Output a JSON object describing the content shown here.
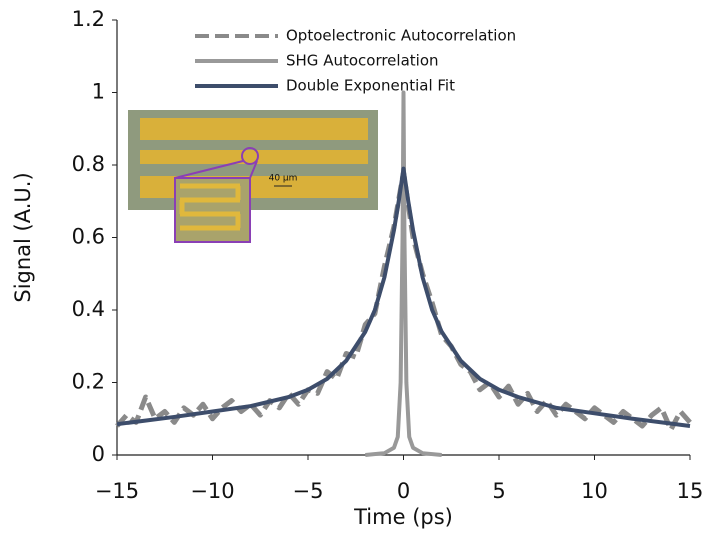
{
  "chart_data": {
    "type": "line",
    "xlabel": "Time (ps)",
    "ylabel": "Signal (A.U.)",
    "xlim": [
      -15,
      15
    ],
    "ylim": [
      0,
      1.2
    ],
    "xticks": [
      {
        "value": -15,
        "label": "−15"
      },
      {
        "value": -10,
        "label": "−10"
      },
      {
        "value": -5,
        "label": "−5"
      },
      0,
      5,
      10,
      15
    ],
    "yticks": [
      0,
      0.2,
      0.4,
      0.6,
      0.8,
      1,
      1.2
    ],
    "grid": false,
    "legend": "top",
    "annotations": [
      "40 μm"
    ],
    "series": [
      {
        "name": "Optoelectronic Autocorrelation",
        "color": "#8a8a8a",
        "dash": true,
        "x": [
          -15,
          -14.5,
          -14,
          -13.5,
          -13,
          -12.5,
          -12,
          -11.5,
          -11,
          -10.5,
          -10,
          -9.5,
          -9,
          -8.5,
          -8,
          -7.5,
          -7,
          -6.5,
          -6,
          -5.5,
          -5,
          -4.5,
          -4,
          -3.5,
          -3,
          -2.5,
          -2,
          -1.5,
          -1,
          -0.5,
          0,
          0.5,
          1,
          1.5,
          2,
          2.5,
          3,
          3.5,
          4,
          4.5,
          5,
          5.5,
          6,
          6.5,
          7,
          7.5,
          8,
          8.5,
          9,
          9.5,
          10,
          10.5,
          11,
          11.5,
          12,
          12.5,
          13,
          13.5,
          14,
          14.5,
          15
        ],
        "values": [
          0.08,
          0.11,
          0.09,
          0.16,
          0.1,
          0.12,
          0.09,
          0.13,
          0.11,
          0.14,
          0.1,
          0.13,
          0.15,
          0.12,
          0.14,
          0.11,
          0.15,
          0.13,
          0.17,
          0.14,
          0.18,
          0.17,
          0.23,
          0.21,
          0.28,
          0.27,
          0.36,
          0.39,
          0.52,
          0.63,
          0.78,
          0.6,
          0.5,
          0.42,
          0.33,
          0.3,
          0.25,
          0.23,
          0.18,
          0.2,
          0.16,
          0.19,
          0.14,
          0.17,
          0.12,
          0.15,
          0.11,
          0.14,
          0.12,
          0.1,
          0.13,
          0.11,
          0.09,
          0.12,
          0.1,
          0.08,
          0.11,
          0.13,
          0.07,
          0.12,
          0.09
        ]
      },
      {
        "name": "SHG Autocorrelation",
        "color": "#999999",
        "dash": false,
        "x": [
          -2,
          -1,
          -0.5,
          -0.3,
          -0.15,
          -0.05,
          0,
          0.05,
          0.15,
          0.3,
          0.5,
          1,
          2
        ],
        "values": [
          0,
          0.005,
          0.02,
          0.05,
          0.2,
          0.6,
          1.0,
          0.6,
          0.2,
          0.05,
          0.02,
          0.005,
          0
        ]
      },
      {
        "name": "Double Exponential Fit",
        "color": "#3d4d6b",
        "dash": false,
        "x": [
          -15,
          -12,
          -10,
          -8,
          -6,
          -5,
          -4,
          -3,
          -2,
          -1.5,
          -1,
          -0.5,
          -0.25,
          0,
          0.25,
          0.5,
          1,
          1.5,
          2,
          3,
          4,
          5,
          6,
          8,
          10,
          12,
          15
        ],
        "values": [
          0.085,
          0.105,
          0.12,
          0.135,
          0.16,
          0.18,
          0.21,
          0.26,
          0.34,
          0.4,
          0.49,
          0.62,
          0.7,
          0.79,
          0.7,
          0.62,
          0.49,
          0.4,
          0.34,
          0.26,
          0.21,
          0.18,
          0.16,
          0.13,
          0.115,
          0.1,
          0.08
        ]
      }
    ]
  }
}
